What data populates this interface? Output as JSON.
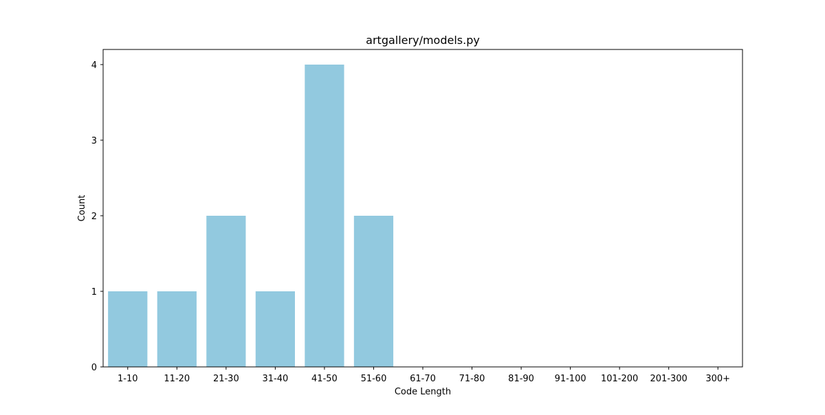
{
  "chart_data": {
    "type": "bar",
    "title": "artgallery/models.py",
    "xlabel": "Code Length",
    "ylabel": "Count",
    "categories": [
      "1-10",
      "11-20",
      "21-30",
      "31-40",
      "41-50",
      "51-60",
      "61-70",
      "71-80",
      "81-90",
      "91-100",
      "101-200",
      "201-300",
      "300+"
    ],
    "values": [
      1,
      1,
      2,
      1,
      4,
      2,
      0,
      0,
      0,
      0,
      0,
      0,
      0
    ],
    "ylim": [
      0,
      4.2
    ],
    "yticks": [
      0,
      1,
      2,
      3,
      4
    ],
    "bar_color": "#92c9df",
    "grid": false,
    "legend": "none"
  }
}
